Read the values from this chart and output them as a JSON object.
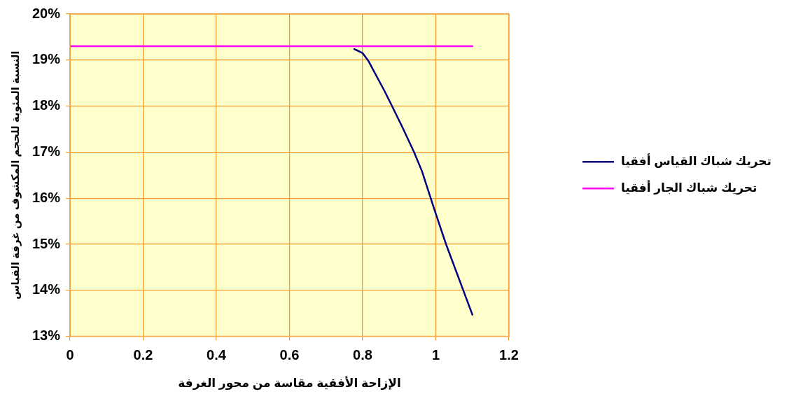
{
  "chart_data": {
    "type": "line",
    "xlabel": "الإزاحة الأفقية مقاسة من محور الغرفة",
    "ylabel": "النسبة المئوية للحجم المكشوف من غرفة القياس",
    "xlim": [
      0,
      1.2
    ],
    "xticks": [
      0,
      0.2,
      0.4,
      0.6,
      0.8,
      1,
      1.2
    ],
    "ylim": [
      13,
      20
    ],
    "yticks": [
      {
        "value": 13,
        "label": "13%"
      },
      {
        "value": 14,
        "label": "14%"
      },
      {
        "value": 15,
        "label": "15%"
      },
      {
        "value": 16,
        "label": "16%"
      },
      {
        "value": 17,
        "label": "17%"
      },
      {
        "value": 18,
        "label": "18%"
      },
      {
        "value": 19,
        "label": "19%"
      },
      {
        "value": 20,
        "label": "20%"
      }
    ],
    "grid": true,
    "legend": "right",
    "marker": "none",
    "line_style": "solid",
    "series": [
      {
        "name": "تحريك شباك القياس أفقيا",
        "color": "#000080",
        "x": [
          0.777,
          0.8,
          0.815,
          0.859,
          0.881,
          0.91,
          0.94,
          0.962,
          0.998,
          1.028,
          1.1
        ],
        "values": [
          19.24,
          19.15,
          18.99,
          18.34,
          17.99,
          17.52,
          17.01,
          16.59,
          15.71,
          15.0,
          13.47
        ]
      },
      {
        "name": "تحريك شباك الجار أفقيا",
        "color": "#ff00ff",
        "x": [
          0,
          1.1
        ],
        "values": [
          19.3,
          19.3
        ]
      }
    ]
  }
}
